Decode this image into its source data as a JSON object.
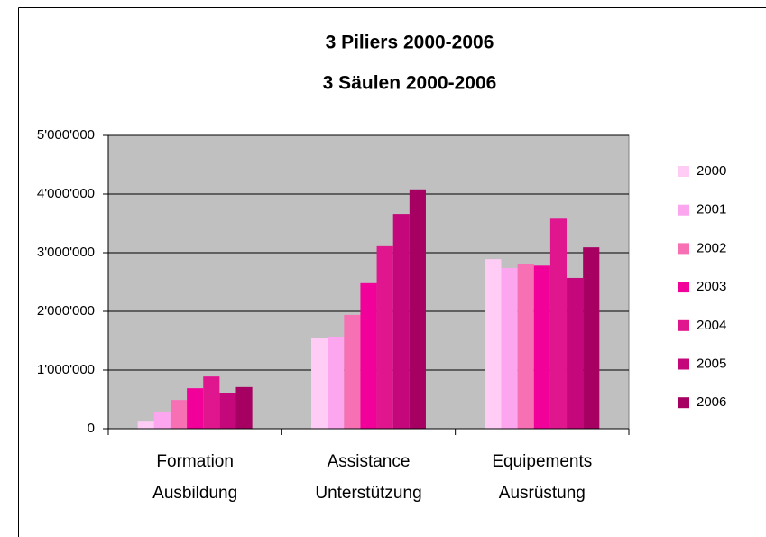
{
  "chart_data": {
    "type": "bar",
    "title": [
      "3 Piliers 2000-2006",
      "3 Säulen 2000-2006"
    ],
    "categories": [
      [
        "Formation",
        "Ausbildung"
      ],
      [
        "Assistance",
        "Unterstützung"
      ],
      [
        "Equipements",
        "Ausrüstung"
      ]
    ],
    "series": [
      {
        "name": "2000",
        "color": "#ffccf5",
        "values": [
          120000,
          1550000,
          2890000
        ]
      },
      {
        "name": "2001",
        "color": "#fca6f0",
        "values": [
          280000,
          1570000,
          2740000
        ]
      },
      {
        "name": "2002",
        "color": "#f770b4",
        "values": [
          490000,
          1940000,
          2800000
        ]
      },
      {
        "name": "2003",
        "color": "#f2009a",
        "values": [
          690000,
          2480000,
          2780000
        ]
      },
      {
        "name": "2004",
        "color": "#e0168e",
        "values": [
          890000,
          3110000,
          3580000
        ]
      },
      {
        "name": "2005",
        "color": "#c4087c",
        "values": [
          600000,
          3660000,
          2570000
        ]
      },
      {
        "name": "2006",
        "color": "#a50062",
        "values": [
          710000,
          4080000,
          3090000
        ]
      }
    ],
    "ylim": [
      0,
      5000000
    ],
    "yticks": [
      0,
      {
        "value": 1000000,
        "label": "1'000'000"
      },
      {
        "value": 2000000,
        "label": "2'000'000"
      },
      {
        "value": 3000000,
        "label": "3'000'000"
      },
      {
        "value": 4000000,
        "label": "4'000'000"
      },
      {
        "value": 5000000,
        "label": "5'000'000"
      }
    ],
    "grid": true,
    "legend": "right"
  }
}
